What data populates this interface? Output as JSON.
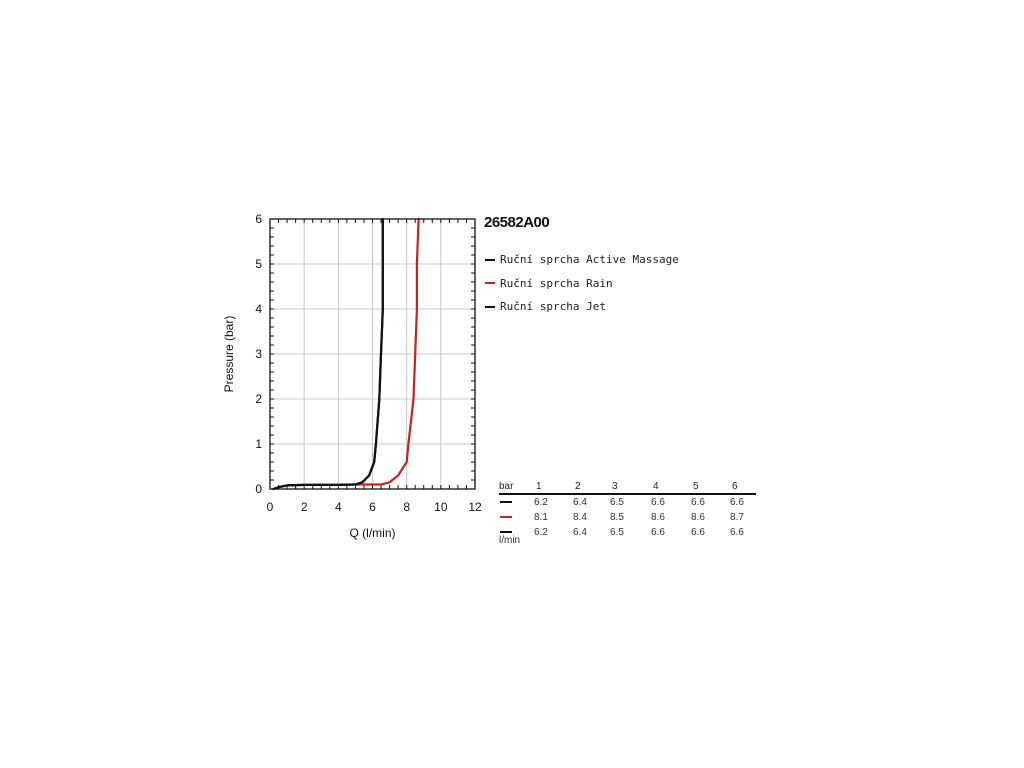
{
  "chart_data": {
    "type": "line",
    "title": "26582A00",
    "xlabel": "Q (l/min)",
    "ylabel": "Pressure (bar)",
    "xlim": [
      0,
      12
    ],
    "ylim": [
      0,
      6
    ],
    "x_ticks": [
      0,
      2,
      4,
      6,
      8,
      10,
      12
    ],
    "y_ticks": [
      0,
      1,
      2,
      3,
      4,
      5,
      6
    ],
    "grid": true,
    "legend_position": "right",
    "series": [
      {
        "name": "Ruční sprcha Active Massage",
        "color": "#111111",
        "points": [
          [
            0.2,
            0.0
          ],
          [
            0.5,
            0.04
          ],
          [
            1.0,
            0.08
          ],
          [
            2.0,
            0.09
          ],
          [
            3.0,
            0.09
          ],
          [
            4.0,
            0.09
          ],
          [
            5.0,
            0.1
          ],
          [
            5.4,
            0.15
          ],
          [
            5.8,
            0.3
          ],
          [
            6.1,
            0.6
          ],
          [
            6.2,
            1.0
          ],
          [
            6.4,
            2.0
          ],
          [
            6.5,
            3.0
          ],
          [
            6.6,
            4.0
          ],
          [
            6.6,
            5.0
          ],
          [
            6.6,
            6.0
          ]
        ]
      },
      {
        "name": "Ruční sprcha Rain",
        "color": "#cc1f1f",
        "points": [
          [
            5.0,
            0.1
          ],
          [
            6.5,
            0.1
          ],
          [
            7.0,
            0.15
          ],
          [
            7.5,
            0.3
          ],
          [
            8.0,
            0.6
          ],
          [
            8.1,
            1.0
          ],
          [
            8.4,
            2.0
          ],
          [
            8.5,
            3.0
          ],
          [
            8.6,
            4.0
          ],
          [
            8.6,
            5.0
          ],
          [
            8.7,
            6.0
          ]
        ]
      },
      {
        "name": "Ruční sprcha Jet",
        "color": "#111111",
        "points": [
          [
            0.2,
            0.0
          ],
          [
            0.5,
            0.04
          ],
          [
            1.0,
            0.08
          ],
          [
            2.0,
            0.09
          ],
          [
            3.0,
            0.09
          ],
          [
            4.0,
            0.09
          ],
          [
            5.0,
            0.1
          ],
          [
            5.4,
            0.15
          ],
          [
            5.8,
            0.3
          ],
          [
            6.1,
            0.6
          ],
          [
            6.2,
            1.0
          ],
          [
            6.4,
            2.0
          ],
          [
            6.5,
            3.0
          ],
          [
            6.6,
            4.0
          ],
          [
            6.6,
            5.0
          ],
          [
            6.6,
            6.0
          ]
        ]
      }
    ],
    "table": {
      "header_label": "bar",
      "columns": [
        "1",
        "2",
        "3",
        "4",
        "5",
        "6"
      ],
      "unit_label": "l/min",
      "rows": [
        {
          "color": "#111111",
          "values": [
            "6.2",
            "6.4",
            "6.5",
            "6.6",
            "6.6",
            "6.6"
          ]
        },
        {
          "color": "#cc1f1f",
          "values": [
            "8.1",
            "8.4",
            "8.5",
            "8.6",
            "8.6",
            "8.7"
          ]
        },
        {
          "color": "#111111",
          "values": [
            "6.2",
            "6.4",
            "6.5",
            "6.6",
            "6.6",
            "6.6"
          ]
        }
      ]
    }
  }
}
